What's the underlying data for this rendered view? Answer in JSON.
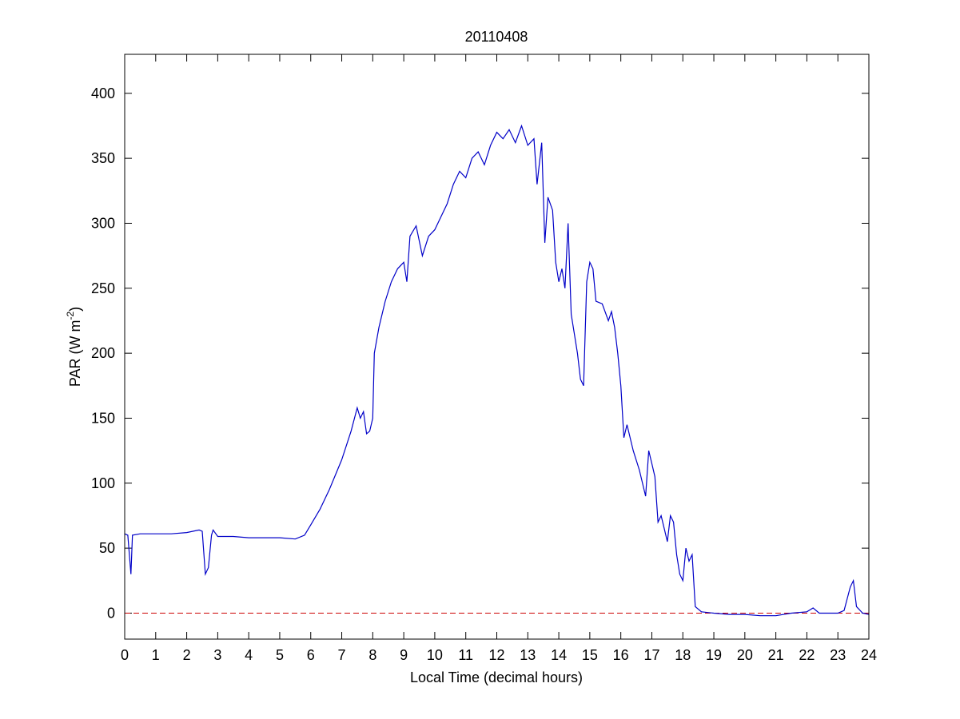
{
  "chart_data": {
    "type": "line",
    "title": "20110408",
    "xlabel": "Local Time (decimal hours)",
    "ylabel": [
      "PAR (W m",
      "-2",
      ")"
    ],
    "x": [
      0,
      0.1,
      0.2,
      0.25,
      0.5,
      1,
      1.5,
      2,
      2.4,
      2.5,
      2.6,
      2.7,
      2.8,
      2.85,
      3,
      3.5,
      4,
      4.5,
      5,
      5.5,
      5.8,
      6,
      6.3,
      6.6,
      7,
      7.3,
      7.5,
      7.6,
      7.7,
      7.8,
      7.9,
      8,
      8.05,
      8.2,
      8.4,
      8.6,
      8.8,
      9,
      9.1,
      9.2,
      9.4,
      9.6,
      9.8,
      10,
      10.2,
      10.4,
      10.6,
      10.8,
      11,
      11.2,
      11.4,
      11.6,
      11.8,
      12,
      12.2,
      12.4,
      12.6,
      12.8,
      13,
      13.2,
      13.3,
      13.45,
      13.55,
      13.65,
      13.8,
      13.9,
      14,
      14.1,
      14.2,
      14.3,
      14.4,
      14.5,
      14.6,
      14.7,
      14.8,
      14.9,
      15,
      15.1,
      15.2,
      15.4,
      15.6,
      15.7,
      15.8,
      15.9,
      16,
      16.1,
      16.2,
      16.4,
      16.6,
      16.8,
      16.9,
      17,
      17.1,
      17.2,
      17.3,
      17.4,
      17.5,
      17.6,
      17.7,
      17.8,
      17.9,
      18,
      18.1,
      18.2,
      18.3,
      18.4,
      18.6,
      19,
      19.5,
      20,
      20.5,
      21,
      21.5,
      22,
      22.2,
      22.4,
      22.8,
      23,
      23.2,
      23.4,
      23.5,
      23.6,
      23.8,
      24
    ],
    "values": [
      61,
      60,
      30,
      60,
      61,
      61,
      61,
      62,
      64,
      63,
      30,
      35,
      60,
      64,
      59,
      59,
      58,
      58,
      58,
      57,
      60,
      68,
      80,
      95,
      118,
      140,
      158,
      150,
      155,
      138,
      140,
      150,
      200,
      220,
      240,
      255,
      265,
      270,
      255,
      290,
      298,
      275,
      290,
      295,
      305,
      315,
      330,
      340,
      335,
      350,
      355,
      345,
      360,
      370,
      365,
      372,
      362,
      375,
      360,
      365,
      330,
      362,
      285,
      320,
      310,
      270,
      255,
      265,
      250,
      300,
      230,
      215,
      200,
      180,
      175,
      255,
      270,
      265,
      240,
      238,
      225,
      232,
      220,
      200,
      175,
      135,
      145,
      125,
      110,
      90,
      125,
      115,
      105,
      70,
      75,
      65,
      55,
      75,
      70,
      45,
      30,
      25,
      50,
      40,
      45,
      5,
      1,
      0,
      -1,
      -1,
      -2,
      -2,
      0,
      1,
      4,
      0,
      0,
      0,
      2,
      20,
      25,
      5,
      0,
      -1
    ],
    "color": "#0000c8",
    "reference_line": {
      "value": 0,
      "color": "#cc0000"
    },
    "xlim": [
      0,
      24
    ],
    "xticks": [
      0,
      1,
      2,
      3,
      4,
      5,
      6,
      7,
      8,
      9,
      10,
      11,
      12,
      13,
      14,
      15,
      16,
      17,
      18,
      19,
      20,
      21,
      22,
      23,
      24
    ],
    "ylim": [
      -20,
      430
    ],
    "yticks": [
      0,
      50,
      100,
      150,
      200,
      250,
      300,
      350,
      400
    ],
    "grid": false
  }
}
